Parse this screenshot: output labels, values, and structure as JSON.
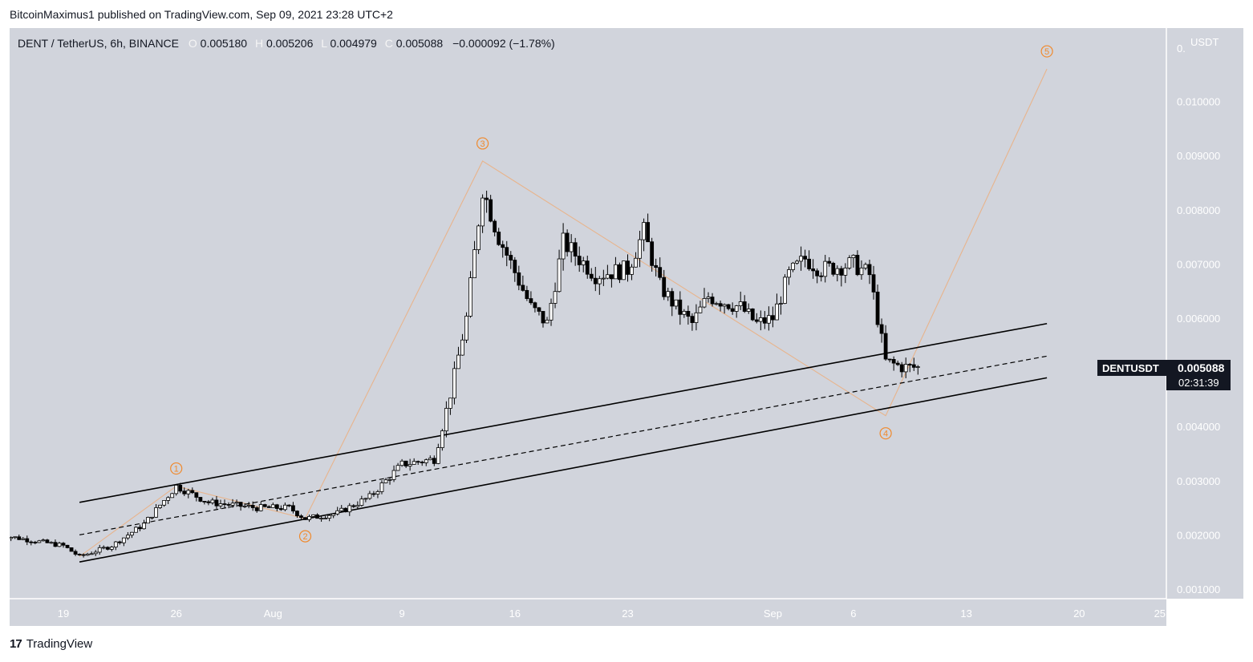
{
  "header": {
    "published_line": "BitcoinMaximus1 published on TradingView.com, Sep 09, 2021 23:28 UTC+2"
  },
  "legend": {
    "symbol": "DENT / TetherUS, 6h, BINANCE",
    "o_label": "O",
    "o_value": "0.005180",
    "h_label": "H",
    "h_value": "0.005206",
    "l_label": "L",
    "l_value": "0.004979",
    "c_label": "C",
    "c_value": "0.005088",
    "change": "−0.000092 (−1.78%)"
  },
  "price_axis": {
    "unit": "USDT",
    "top_partial": "0.",
    "ticks": [
      "0.010000",
      "0.009000",
      "0.008000",
      "0.007000",
      "0.006000",
      "0.004000",
      "0.003000",
      "0.002000",
      "0.001000"
    ]
  },
  "time_axis": {
    "ticks": [
      "19",
      "26",
      "Aug",
      "9",
      "16",
      "23",
      "Sep",
      "6",
      "13",
      "20",
      "25"
    ]
  },
  "price_tag": {
    "symbol": "DENTUSDT",
    "price": "0.005088",
    "countdown": "02:31:39"
  },
  "footer": {
    "logo_glyph": "17",
    "brand": "TradingView"
  },
  "colors": {
    "plot_bg": "#d1d4dc",
    "candle_up": "#ffffff",
    "candle_down": "#000000",
    "wave_line": "#e8b48c",
    "wave_label": "#f0892c",
    "channel": "#000000"
  },
  "chart_data": {
    "type": "candlestick",
    "title": "DENT / TetherUS, 6h, BINANCE",
    "ylabel": "USDT",
    "ylim": [
      0.0008,
      0.0111
    ],
    "x_ticks": [
      "19",
      "26",
      "Aug",
      "9",
      "16",
      "23",
      "Sep",
      "6",
      "13",
      "20",
      "25"
    ],
    "price_path": [
      {
        "date": "2021-07-15",
        "close": 0.002
      },
      {
        "date": "2021-07-17",
        "close": 0.0019
      },
      {
        "date": "2021-07-19",
        "close": 0.0018
      },
      {
        "date": "2021-07-20",
        "close": 0.0016
      },
      {
        "date": "2021-07-22",
        "close": 0.0018
      },
      {
        "date": "2021-07-24",
        "close": 0.0022
      },
      {
        "date": "2021-07-26",
        "close": 0.0029
      },
      {
        "date": "2021-07-28",
        "close": 0.0026
      },
      {
        "date": "2021-07-31",
        "close": 0.0025
      },
      {
        "date": "2021-08-02",
        "close": 0.0025
      },
      {
        "date": "2021-08-03",
        "close": 0.0023
      },
      {
        "date": "2021-08-05",
        "close": 0.0024
      },
      {
        "date": "2021-08-07",
        "close": 0.0027
      },
      {
        "date": "2021-08-09",
        "close": 0.0033
      },
      {
        "date": "2021-08-11",
        "close": 0.0034
      },
      {
        "date": "2021-08-12",
        "close": 0.0046
      },
      {
        "date": "2021-08-13",
        "close": 0.006
      },
      {
        "date": "2021-08-14",
        "close": 0.0084
      },
      {
        "date": "2021-08-15",
        "close": 0.0075
      },
      {
        "date": "2021-08-17",
        "close": 0.0062
      },
      {
        "date": "2021-08-18",
        "close": 0.0059
      },
      {
        "date": "2021-08-19",
        "close": 0.0074
      },
      {
        "date": "2021-08-21",
        "close": 0.0068
      },
      {
        "date": "2021-08-23",
        "close": 0.0069
      },
      {
        "date": "2021-08-24",
        "close": 0.0076
      },
      {
        "date": "2021-08-25",
        "close": 0.0066
      },
      {
        "date": "2021-08-26",
        "close": 0.0062
      },
      {
        "date": "2021-08-27",
        "close": 0.0059
      },
      {
        "date": "2021-08-28",
        "close": 0.0064
      },
      {
        "date": "2021-08-30",
        "close": 0.0062
      },
      {
        "date": "2021-08-31",
        "close": 0.0059
      },
      {
        "date": "2021-09-01",
        "close": 0.006
      },
      {
        "date": "2021-09-02",
        "close": 0.0068
      },
      {
        "date": "2021-09-03",
        "close": 0.0071
      },
      {
        "date": "2021-09-04",
        "close": 0.0069
      },
      {
        "date": "2021-09-06",
        "close": 0.007
      },
      {
        "date": "2021-09-07",
        "close": 0.0068
      },
      {
        "date": "2021-09-08",
        "close": 0.0052
      },
      {
        "date": "2021-09-09",
        "close": 0.0051
      },
      {
        "date": "2021-09-10",
        "close": 0.005088
      }
    ],
    "elliott_waves": [
      {
        "label": "1",
        "date": "2021-07-26",
        "price": 0.0029
      },
      {
        "label": "2",
        "date": "2021-08-03",
        "price": 0.0023
      },
      {
        "label": "3",
        "date": "2021-08-14",
        "price": 0.0089
      },
      {
        "label": "4",
        "date": "2021-09-08",
        "price": 0.0042
      },
      {
        "label": "5",
        "date": "2021-09-18",
        "price": 0.0106
      }
    ],
    "wave_path_start": {
      "date": "2021-07-20",
      "price": 0.0016
    },
    "channel": {
      "x_range": [
        "2021-07-20",
        "2021-09-18"
      ],
      "upper": [
        0.0026,
        0.0059
      ],
      "middle": [
        0.002,
        0.0053
      ],
      "lower": [
        0.0015,
        0.0049
      ]
    },
    "last_price": 0.005088
  }
}
